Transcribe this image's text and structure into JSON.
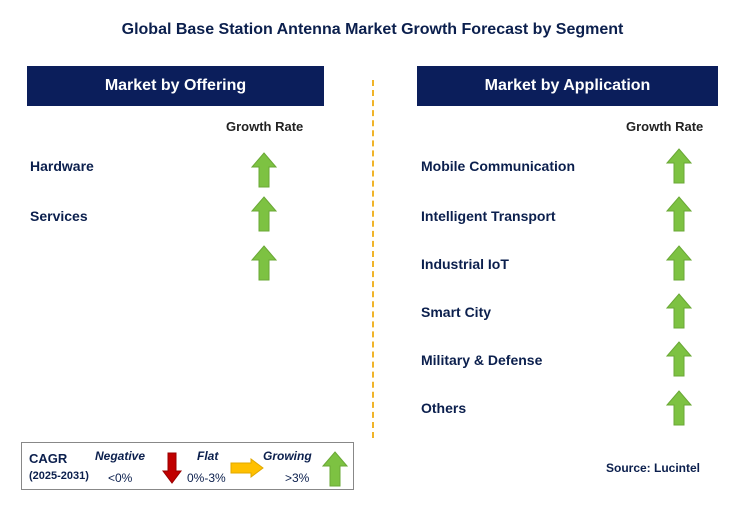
{
  "title": "Global Base Station Antenna Market Growth Forecast by Segment",
  "colors": {
    "header_bg": "#0b1e5b",
    "arrow_green": "#7dc242",
    "arrow_red": "#c00000",
    "arrow_orange": "#ffc000",
    "divider": "#f0b429"
  },
  "offering": {
    "header": "Market by Offering",
    "growth_rate_label": "Growth Rate",
    "items": [
      {
        "label": "Hardware",
        "trend": "growing"
      },
      {
        "label": "Services",
        "trend": "growing"
      },
      {
        "label": "",
        "trend": "growing"
      }
    ]
  },
  "application": {
    "header": "Market by Application",
    "growth_rate_label": "Growth Rate",
    "items": [
      {
        "label": "Mobile Communication",
        "trend": "growing"
      },
      {
        "label": "Intelligent Transport",
        "trend": "growing"
      },
      {
        "label": "Industrial IoT",
        "trend": "growing"
      },
      {
        "label": "Smart City",
        "trend": "growing"
      },
      {
        "label": "Military & Defense",
        "trend": "growing"
      },
      {
        "label": "Others",
        "trend": "growing"
      }
    ]
  },
  "legend": {
    "cagr_label": "CAGR",
    "period": "(2025-2031)",
    "negative_label": "Negative",
    "negative_range": "<0%",
    "flat_label": "Flat",
    "flat_range": "0%-3%",
    "growing_label": "Growing",
    "growing_range": ">3%"
  },
  "source": "Source: Lucintel"
}
